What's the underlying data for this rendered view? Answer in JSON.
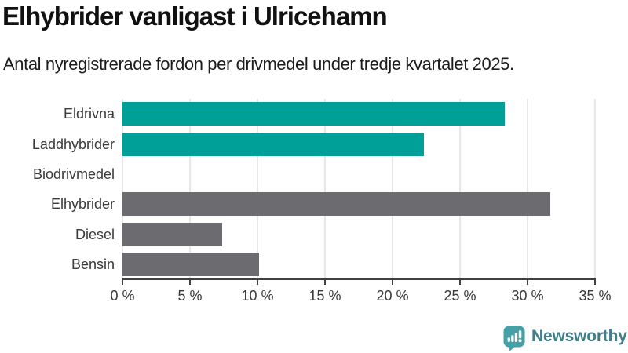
{
  "header": {
    "title": "Elhybrider vanligast i Ulricehamn",
    "subtitle": "Antal nyregistrerade fordon per drivmedel under tredje kvartalet 2025."
  },
  "chart_data": {
    "type": "bar",
    "orientation": "horizontal",
    "title": "Elhybrider vanligast i Ulricehamn",
    "subtitle": "Antal nyregistrerade fordon per drivmedel under tredje kvartalet 2025.",
    "categories": [
      "Eldrivna",
      "Laddhybrider",
      "Biodrivmedel",
      "Elhybrider",
      "Diesel",
      "Bensin"
    ],
    "values": [
      28.3,
      22.3,
      0,
      31.7,
      7.4,
      10.1
    ],
    "unit": "%",
    "bar_colors": [
      "#00a099",
      "#00a099",
      "#00a099",
      "#6c6c70",
      "#6c6c70",
      "#6c6c70"
    ],
    "highlight_color": "#00a099",
    "muted_color": "#6c6c70",
    "x_tick_labels": [
      "0 %",
      "5 %",
      "10 %",
      "15 %",
      "20 %",
      "25 %",
      "30 %",
      "35 %"
    ],
    "x_tick_values": [
      0,
      5,
      10,
      15,
      20,
      25,
      30,
      35
    ],
    "xlim": [
      0,
      35
    ],
    "xlabel": "",
    "ylabel": "",
    "grid": "vertical",
    "gridline_color": "#e7e7e7",
    "axis_color": "#404040",
    "label_color": "#3a3a3a"
  },
  "footer": {
    "brand": "Newsworthy",
    "brand_color": "#3e7d89",
    "icon": "newsworthy-chart-bubble-icon",
    "icon_color": "#45a1a6"
  }
}
